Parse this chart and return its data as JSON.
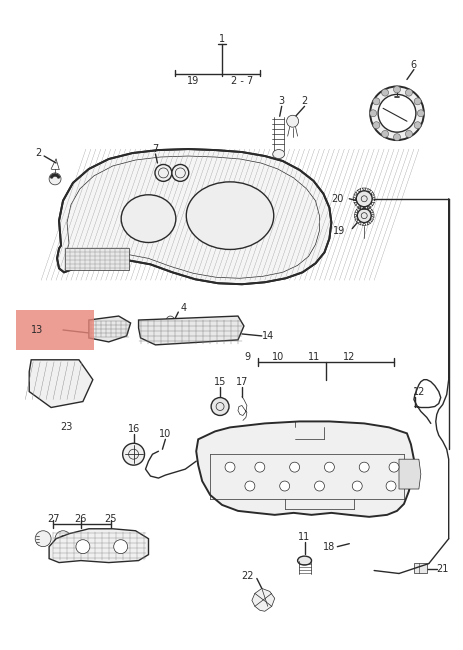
{
  "bg_color": "#ffffff",
  "line_color": "#2a2a2a",
  "highlight_color": "#e8857a",
  "fig_width": 4.64,
  "fig_height": 6.5,
  "dpi": 100,
  "lw_main": 1.0,
  "lw_thin": 0.5,
  "lw_thick": 1.4,
  "font_size": 6.5
}
